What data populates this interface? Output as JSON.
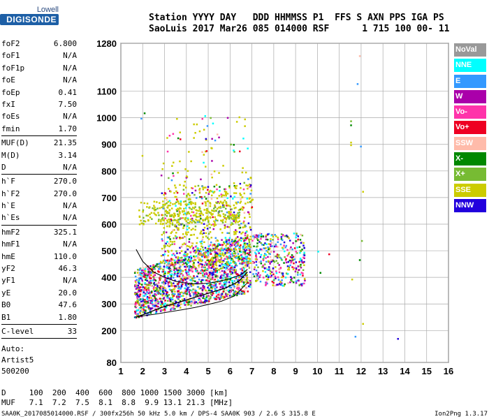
{
  "logo": {
    "line1": "Lowell",
    "line2": "DIGISONDE"
  },
  "header": {
    "row1": "Station YYYY DAY   DDD HHMMSS P1  FFS S AXN PPS IGA PS",
    "row2": "SaoLuis 2017 Mar26 085 014000 RSF      1 715 100 00- 11"
  },
  "params": [
    {
      "name": "foF2",
      "value": "6.800",
      "sep_after": false
    },
    {
      "name": "foF1",
      "value": "N/A",
      "sep_after": false
    },
    {
      "name": "foF1p",
      "value": "N/A",
      "sep_after": false
    },
    {
      "name": "foE",
      "value": "N/A",
      "sep_after": false
    },
    {
      "name": "foEp",
      "value": "0.41",
      "sep_after": false
    },
    {
      "name": "fxI",
      "value": "7.50",
      "sep_after": false
    },
    {
      "name": "foEs",
      "value": "N/A",
      "sep_after": false
    },
    {
      "name": "fmin",
      "value": "1.70",
      "sep_after": true
    },
    {
      "name": "MUF(D)",
      "value": "21.35",
      "sep_after": false
    },
    {
      "name": "M(D)",
      "value": "3.14",
      "sep_after": false
    },
    {
      "name": "D",
      "value": "N/A",
      "sep_after": true
    },
    {
      "name": "h`F",
      "value": "270.0",
      "sep_after": false
    },
    {
      "name": "h`F2",
      "value": "270.0",
      "sep_after": false
    },
    {
      "name": "h`E",
      "value": "N/A",
      "sep_after": false
    },
    {
      "name": "h`Es",
      "value": "N/A",
      "sep_after": true
    },
    {
      "name": "hmF2",
      "value": "325.1",
      "sep_after": false
    },
    {
      "name": "hmF1",
      "value": "N/A",
      "sep_after": false
    },
    {
      "name": "hmE",
      "value": "110.0",
      "sep_after": false
    },
    {
      "name": "yF2",
      "value": "46.3",
      "sep_after": false
    },
    {
      "name": "yF1",
      "value": "N/A",
      "sep_after": false
    },
    {
      "name": "yE",
      "value": "20.0",
      "sep_after": false
    },
    {
      "name": "B0",
      "value": "47.6",
      "sep_after": false
    },
    {
      "name": "B1",
      "value": "1.80",
      "sep_after": true
    },
    {
      "name": "C-level",
      "value": "33",
      "sep_after": true
    }
  ],
  "auto": [
    "Auto:",
    "Artist5",
    "500200"
  ],
  "legend": [
    {
      "label": "NoVal",
      "color": "#999999"
    },
    {
      "label": "NNE",
      "color": "#00ffff"
    },
    {
      "label": "E",
      "color": "#3399ff"
    },
    {
      "label": "W",
      "color": "#aa00aa"
    },
    {
      "label": "Vo-",
      "color": "#ff33aa"
    },
    {
      "label": "Vo+",
      "color": "#ee0022"
    },
    {
      "label": "SSW",
      "color": "#ffbbaa"
    },
    {
      "label": "X-",
      "color": "#008800"
    },
    {
      "label": "X+",
      "color": "#77bb33"
    },
    {
      "label": "SSE",
      "color": "#cccc00"
    },
    {
      "label": "NNW",
      "color": "#2200dd"
    }
  ],
  "muf_table": {
    "row1": "D     100  200  400  600  800 1000 1500 3000 [km]",
    "row2": "MUF   7.1  7.2  7.5  8.1  8.8  9.9 13.1 21.3 [MHz]"
  },
  "footer": "SAA0K_2017085014000.RSF / 300fx256h 50 kHz 5.0 km / DPS-4 SAA0K 903 / 2.6 S 315.8 E",
  "version": "Ion2Png 1.3.17",
  "chart_data": {
    "type": "scatter",
    "xlim": [
      1,
      16
    ],
    "xticks": [
      1,
      2,
      3,
      4,
      5,
      6,
      7,
      8,
      9,
      10,
      11,
      12,
      13,
      14,
      15,
      16
    ],
    "ylim": [
      80,
      1280
    ],
    "yticks": [
      80,
      200,
      300,
      400,
      500,
      600,
      700,
      800,
      900,
      1000,
      1100,
      1280
    ],
    "grid": true,
    "x_unit": "MHz",
    "y_unit": "km",
    "profile_curve": {
      "freq": [
        1.7,
        2.2,
        2.8,
        3.4,
        4.0,
        4.6,
        5.2,
        5.8,
        6.4,
        6.8
      ],
      "height": [
        250,
        265,
        285,
        300,
        315,
        330,
        345,
        360,
        385,
        420
      ]
    },
    "trace_curve": {
      "freq": [
        1.7,
        2.0,
        2.5,
        3.0,
        3.5,
        4.0,
        4.5,
        5.0,
        5.5,
        6.0,
        6.5,
        6.8
      ],
      "height": [
        505,
        460,
        420,
        400,
        385,
        378,
        375,
        378,
        385,
        395,
        410,
        430
      ]
    },
    "profile_lower": {
      "freq": [
        1.6,
        2.0,
        2.6,
        3.2,
        3.8,
        4.4,
        5.0,
        5.6,
        6.2,
        6.8
      ],
      "height": [
        250,
        255,
        262,
        270,
        278,
        287,
        298,
        310,
        330,
        380
      ]
    }
  }
}
